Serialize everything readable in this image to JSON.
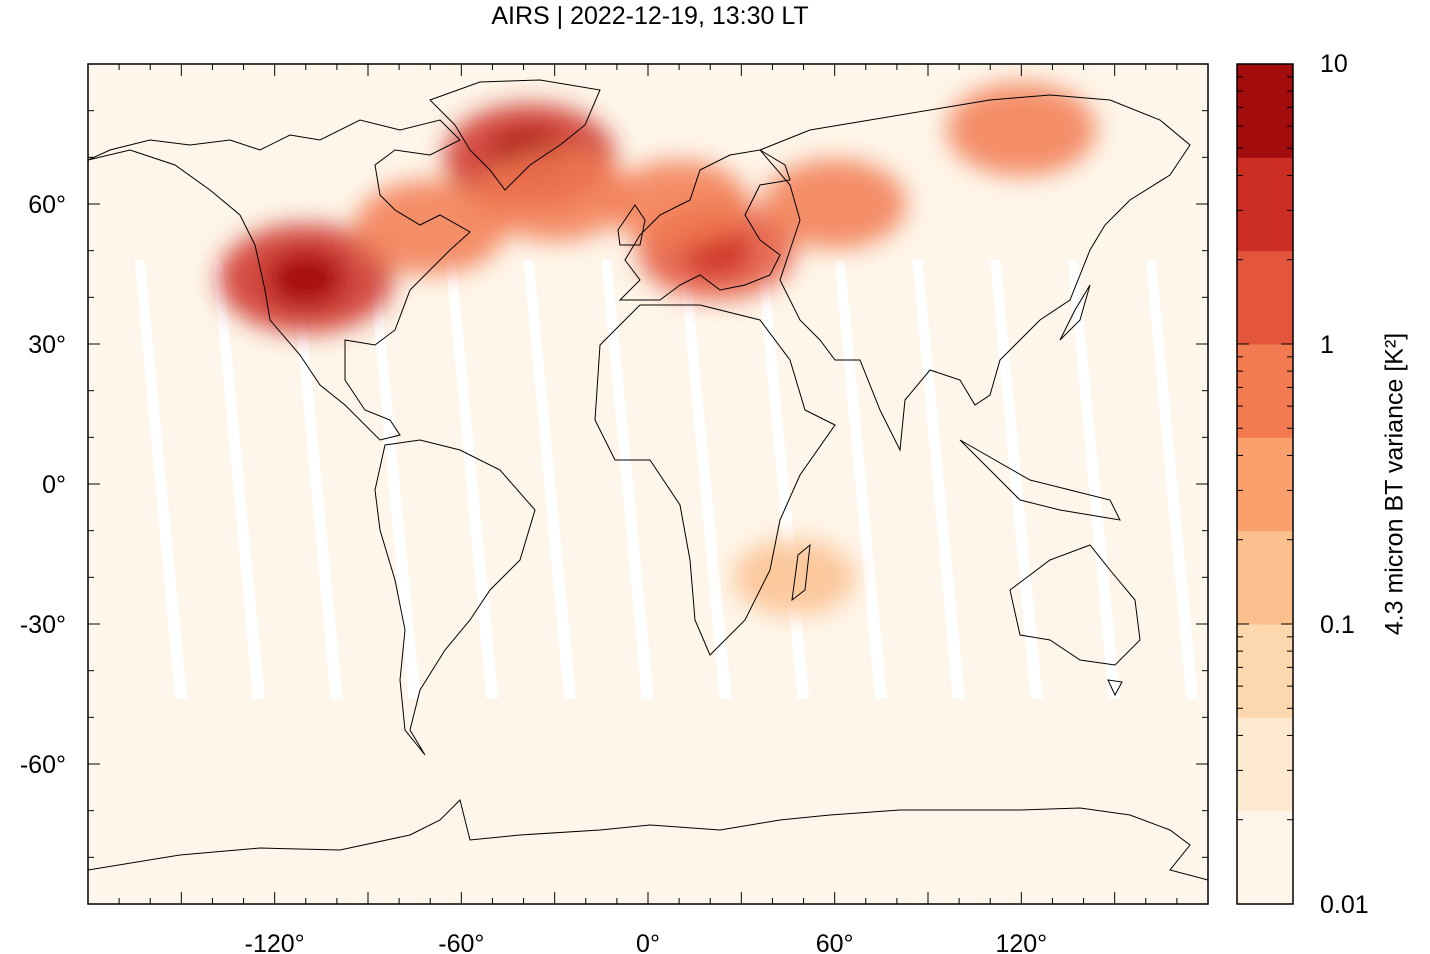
{
  "title": "AIRS | 2022-12-19, 13:30 LT",
  "map": {
    "type": "heatmap",
    "projection": "equirectangular",
    "lon_range": [
      -180,
      180
    ],
    "lat_range": [
      -90,
      90
    ],
    "x_ticks": [
      {
        "value": -120,
        "label": "-120°"
      },
      {
        "value": -60,
        "label": "-60°"
      },
      {
        "value": 0,
        "label": "0°"
      },
      {
        "value": 60,
        "label": "60°"
      },
      {
        "value": 120,
        "label": "120°"
      }
    ],
    "y_ticks": [
      {
        "value": 60,
        "label": "60°"
      },
      {
        "value": 30,
        "label": "30°"
      },
      {
        "value": 0,
        "label": "0°"
      },
      {
        "value": -30,
        "label": "-30°"
      },
      {
        "value": -60,
        "label": "-60°"
      }
    ],
    "background_color": "#fef6ea",
    "coastline_color": "#000000",
    "hotspots": [
      {
        "name": "western-north-america",
        "lon": -110,
        "lat": 44,
        "value": 3.0
      },
      {
        "name": "southern-greenland",
        "lon": -38,
        "lat": 70,
        "value": 2.5
      },
      {
        "name": "central-europe",
        "lon": 22,
        "lat": 50,
        "value": 1.2
      },
      {
        "name": "eastern-canada",
        "lon": -70,
        "lat": 55,
        "value": 0.9
      },
      {
        "name": "north-atlantic",
        "lon": -30,
        "lat": 62,
        "value": 0.8
      },
      {
        "name": "siberia-north",
        "lon": 120,
        "lat": 76,
        "value": 0.8
      },
      {
        "name": "scandinavia",
        "lon": 10,
        "lat": 60,
        "value": 0.5
      },
      {
        "name": "central-russia",
        "lon": 60,
        "lat": 60,
        "value": 0.6
      },
      {
        "name": "madagascar-east",
        "lon": 47,
        "lat": -20,
        "value": 0.2
      }
    ],
    "swath_gaps_note": "satellite orbit gaps visible as white diagonal stripes in low latitudes"
  },
  "colorbar": {
    "label": "4.3 micron BT variance [K²]",
    "scale": "log",
    "min": 0.01,
    "max": 10,
    "tick_labels": [
      {
        "value": 10,
        "label": "10"
      },
      {
        "value": 1,
        "label": "1"
      },
      {
        "value": 0.1,
        "label": "0.1"
      },
      {
        "value": 0.01,
        "label": "0.01"
      }
    ],
    "colors": [
      "#fef6ea",
      "#fde9cf",
      "#fdd8ae",
      "#fcc08e",
      "#f9a06d",
      "#f27b52",
      "#e4553d",
      "#cd2e23",
      "#a30d0d"
    ]
  }
}
